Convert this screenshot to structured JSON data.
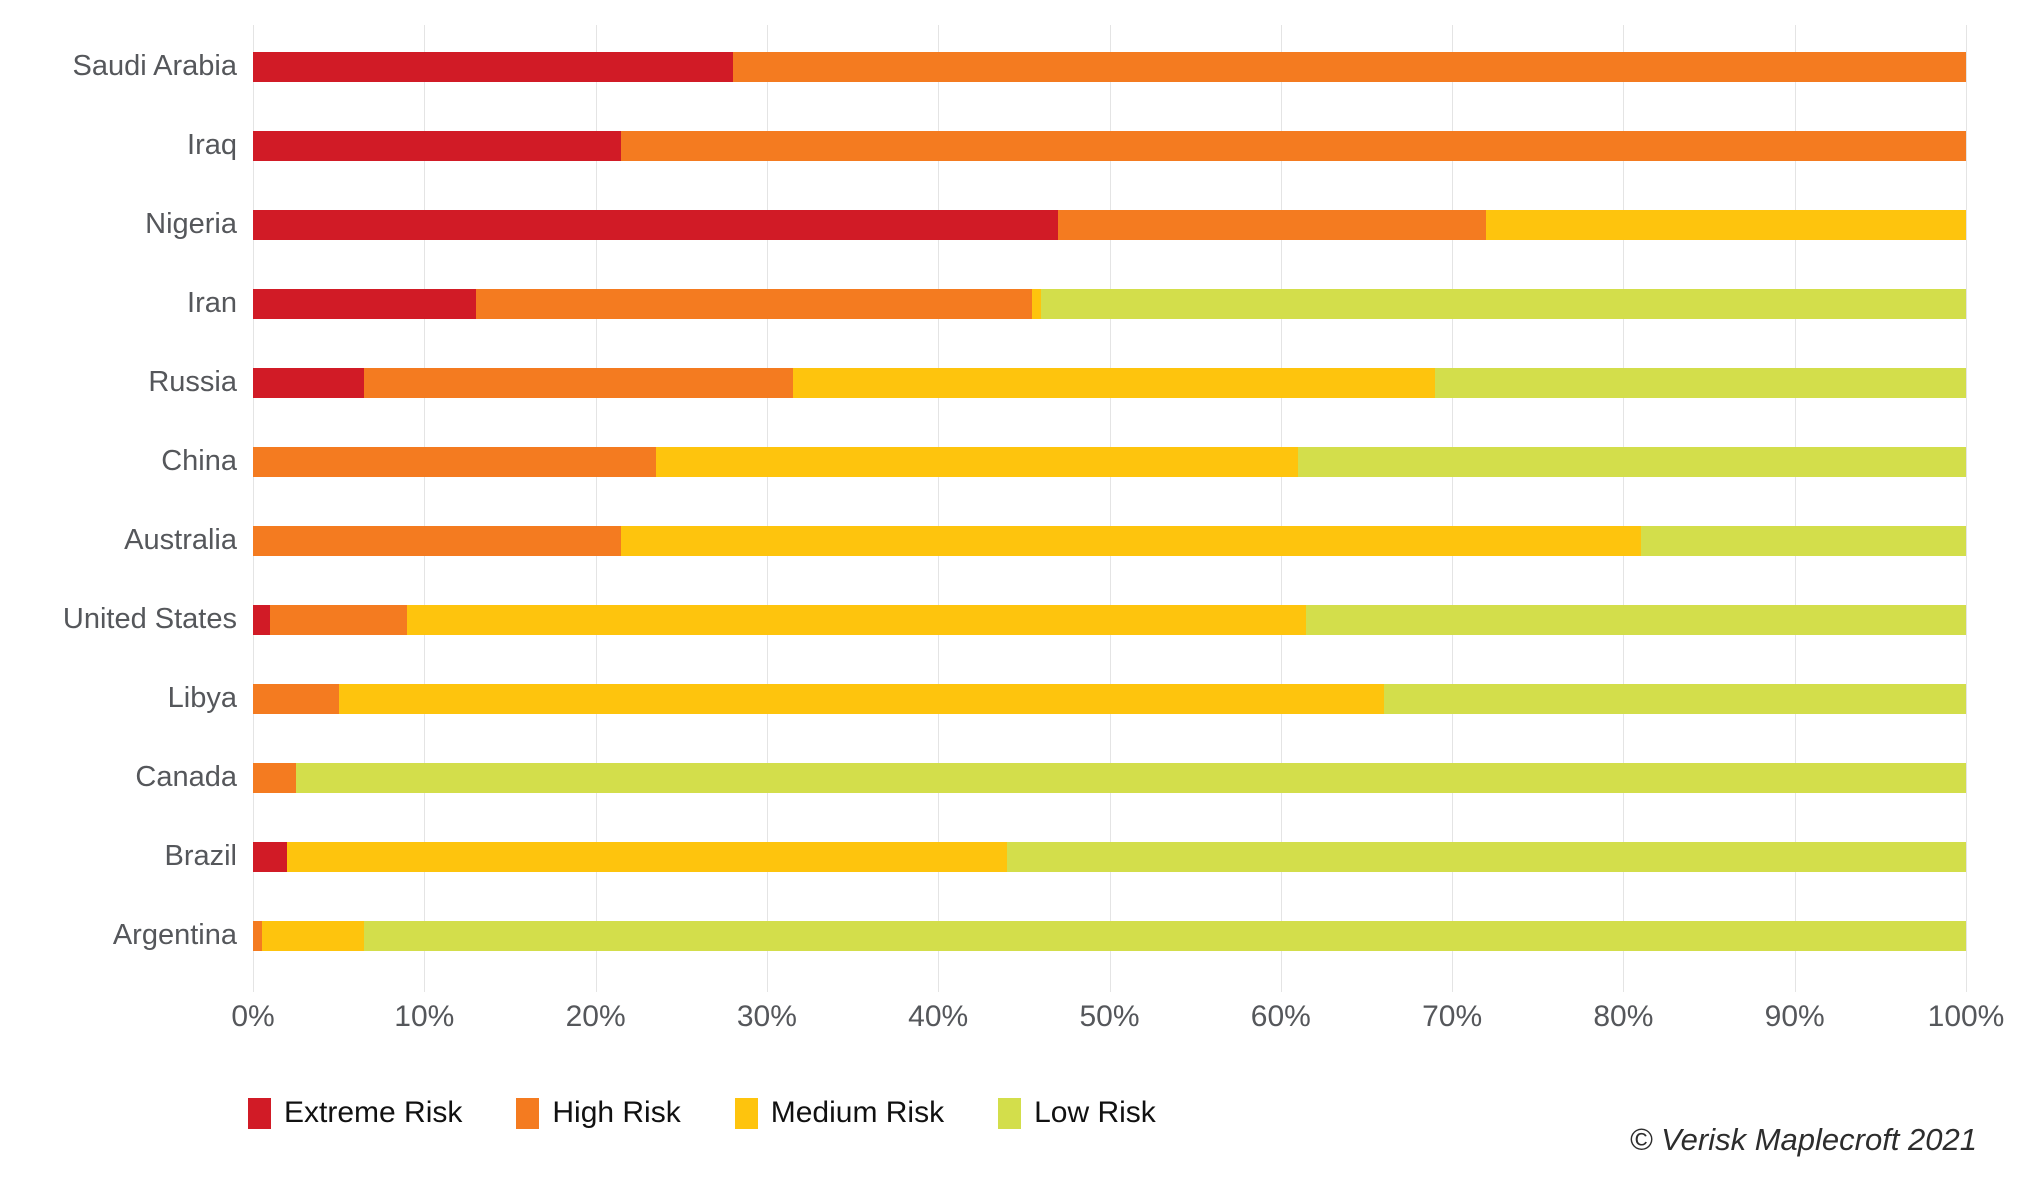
{
  "chart_data": {
    "type": "bar",
    "orientation": "horizontal",
    "stacked": true,
    "title": "",
    "xlabel": "",
    "ylabel": "",
    "xlim": [
      0,
      100
    ],
    "grid": true,
    "legend_position": "bottom",
    "x_ticks": [
      "0%",
      "10%",
      "20%",
      "30%",
      "40%",
      "50%",
      "60%",
      "70%",
      "80%",
      "90%",
      "100%"
    ],
    "categories": [
      "Saudi Arabia",
      "Iraq",
      "Nigeria",
      "Iran",
      "Russia",
      "China",
      "Australia",
      "United States",
      "Libya",
      "Canada",
      "Brazil",
      "Argentina"
    ],
    "series": [
      {
        "name": "Extreme Risk",
        "color": "#d11b26",
        "values": [
          28,
          21.5,
          47,
          13,
          6.5,
          0,
          0,
          1,
          0,
          0,
          2,
          0
        ]
      },
      {
        "name": "High Risk",
        "color": "#f47b20",
        "values": [
          72,
          78.5,
          25,
          32.5,
          25,
          23.5,
          21.5,
          8,
          5,
          2.5,
          0,
          0.5
        ]
      },
      {
        "name": "Medium Risk",
        "color": "#fec40d",
        "values": [
          0,
          0,
          28,
          0.5,
          37.5,
          37.5,
          59.5,
          52.5,
          61,
          0,
          42,
          6
        ]
      },
      {
        "name": "Low Risk",
        "color": "#d3de4b",
        "values": [
          0,
          0,
          0,
          54,
          31,
          39,
          19,
          38.5,
          34,
          97.5,
          56,
          93.5
        ]
      }
    ]
  },
  "legend": {
    "items": [
      {
        "label": "Extreme Risk",
        "color": "#d11b26"
      },
      {
        "label": "High Risk",
        "color": "#f47b20"
      },
      {
        "label": "Medium Risk",
        "color": "#fec40d"
      },
      {
        "label": "Low Risk",
        "color": "#d3de4b"
      }
    ]
  },
  "attribution": "© Verisk Maplecroft 2021",
  "style_colors": {
    "gridline": "#e4e4e4",
    "axis_text": "#55575b",
    "legend_text": "#111111"
  }
}
